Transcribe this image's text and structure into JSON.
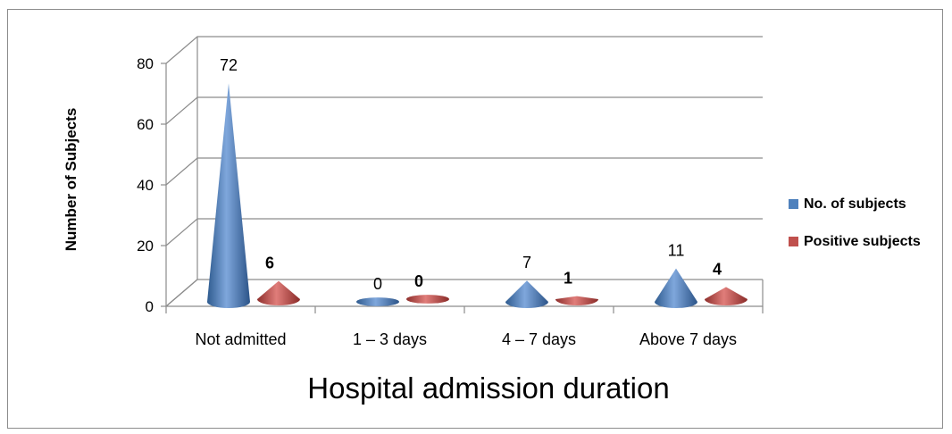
{
  "chart_data": {
    "type": "bar",
    "style": "3d-cone",
    "xlabel": "Hospital admission duration",
    "ylabel": "Number of Subjects",
    "ylim": [
      0,
      80
    ],
    "yticks": [
      "0",
      "20",
      "40",
      "60",
      "80"
    ],
    "grid": true,
    "legend_position": "right",
    "categories": [
      "Not admitted",
      "1 – 3 days",
      "4 – 7 days",
      "Above 7 days"
    ],
    "series": [
      {
        "name": "No. of subjects",
        "color": "#4f81bd",
        "values": [
          72,
          0,
          7,
          11
        ],
        "labels": [
          "72",
          "0",
          "7",
          "11"
        ]
      },
      {
        "name": "Positive subjects",
        "color": "#c0504d",
        "values": [
          6,
          0,
          1,
          4
        ],
        "labels": [
          "6",
          "0",
          "1",
          "4"
        ]
      }
    ]
  }
}
